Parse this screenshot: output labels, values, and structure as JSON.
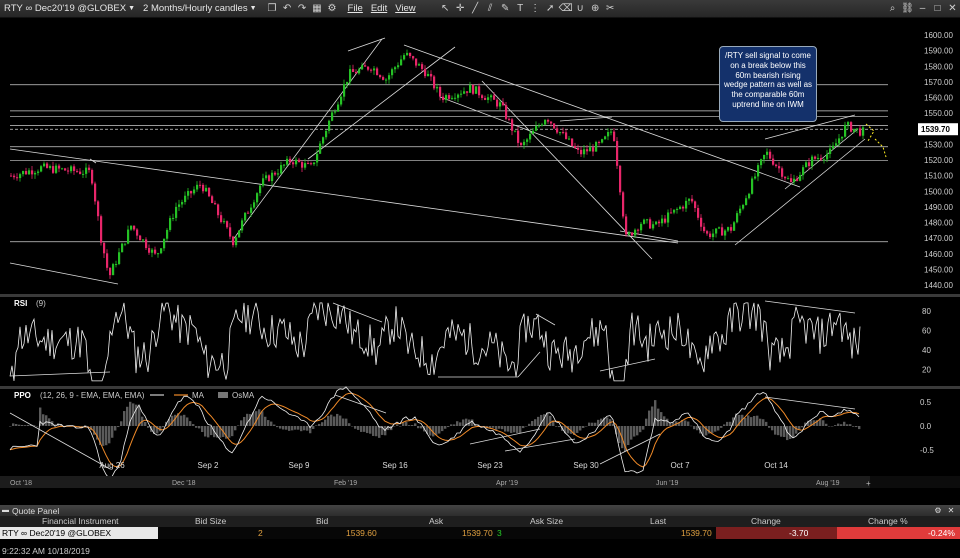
{
  "toolbar": {
    "symbol": "RTY",
    "contract": "∞ Dec20'19 @GLOBEX",
    "timeframe": "2 Months/Hourly candles",
    "menus": [
      "File",
      "Edit",
      "View"
    ]
  },
  "callout": {
    "text": "/RTY  sell signal to come on a break below this 60m bearish rising wedge pattern as well as the comparable 60m uptrend line on IWM"
  },
  "price_axis": {
    "ticks": [
      "1600.00",
      "1590.00",
      "1580.00",
      "1570.00",
      "1560.00",
      "1550.00",
      "1540.00",
      "1530.00",
      "1520.00",
      "1510.00",
      "1500.00",
      "1490.00",
      "1480.00",
      "1470.00",
      "1460.00",
      "1450.00",
      "1440.00"
    ],
    "levels": [
      "1568.18",
      "1551.42",
      "1547.79",
      "1542.18",
      "1528.49",
      "1519.73",
      "1467.69"
    ],
    "last_price": "1539.70"
  },
  "rsi": {
    "title": "RSI",
    "param": "(9)",
    "ticks": [
      "80",
      "60",
      "40",
      "20"
    ]
  },
  "ppo": {
    "title": "PPO",
    "params": "(12, 26, 9 - EMA, EMA, EMA)",
    "legend": [
      "MA",
      "OsMA"
    ],
    "ticks": [
      "0.5",
      "0.0",
      "-0.5"
    ]
  },
  "time_axis": [
    "Aug 26",
    "Sep 2",
    "Sep 9",
    "Sep 16",
    "Sep 23",
    "Sep 30",
    "Oct 7",
    "Oct 14"
  ],
  "scroll_axis": [
    "Oct '18",
    "Dec '18",
    "Feb '19",
    "Apr '19",
    "Jun '19",
    "Aug '19"
  ],
  "quote_panel": {
    "title": "Quote Panel",
    "columns": [
      "Financial Instrument",
      "Bid Size",
      "Bid",
      "Ask",
      "Ask Size",
      "Last",
      "Change",
      "Change %"
    ],
    "row": {
      "instrument": "RTY ∞ Dec20'19 @GLOBEX",
      "bid_size": "2",
      "bid": "1539.60",
      "ask": "1539.70",
      "ask_size": "3",
      "last": "1539.70",
      "change": "-3.70",
      "change_pct": "-0.24%"
    }
  },
  "status": {
    "clock": "9:22:32 AM 10/18/2019"
  },
  "colors": {
    "up": "#25c225",
    "down": "#e8266a",
    "ppo_ma": "#f08a28",
    "change_bg": "#e03b3b",
    "callout_bg": "#14316b"
  }
}
